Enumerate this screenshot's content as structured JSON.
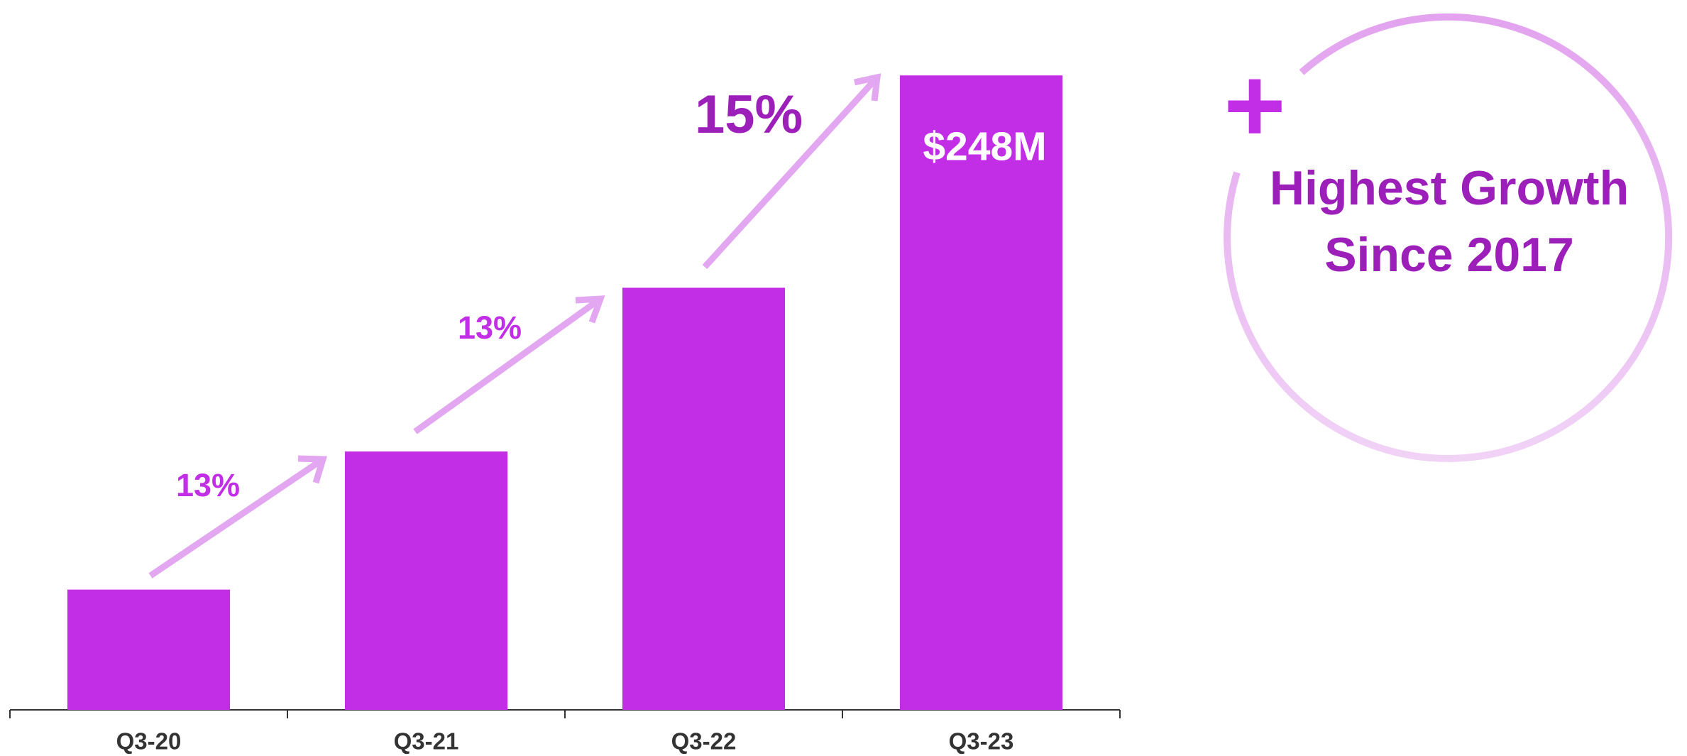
{
  "chart_data": {
    "type": "bar",
    "categories": [
      "Q3-20",
      "Q3-21",
      "Q3-22",
      "Q3-23"
    ],
    "values": [
      47,
      101,
      165,
      248
    ],
    "value_labels": [
      null,
      null,
      null,
      "$248M"
    ],
    "color": "#c12ee6",
    "ylim": [
      0,
      260
    ],
    "annotations": {
      "growth": [
        "13%",
        "13%",
        "15%"
      ],
      "plus": "+",
      "callout": [
        "Highest Growth",
        "Since 2017"
      ]
    }
  }
}
